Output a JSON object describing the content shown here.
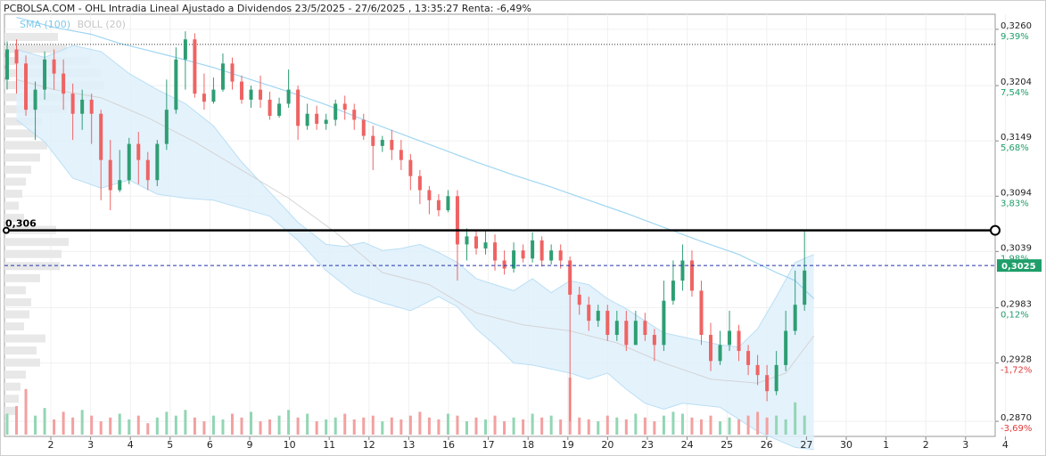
{
  "title": "PCBOLSA.COM - OHL Intradia Lineal Ajustado a Dividendos 23/5/2025 - 27/6/2025 , 13:35:27 Renta: -6,49%",
  "indicators": {
    "sma": "SMA (100)",
    "boll": "BOLL (20)"
  },
  "colors": {
    "up": "#2e9e73",
    "down": "#ef6363",
    "sma": "#9fd6f2",
    "band_fill": "#dff0fb",
    "band_line": "#b9dff4",
    "price_tag": "#1f9e6a",
    "pct_up": "#1f9e6a",
    "pct_down": "#e23a3a"
  },
  "chart_data": {
    "type": "candlestick",
    "x_ticks": [
      "2",
      "3",
      "4",
      "5",
      "6",
      "9",
      "10",
      "11",
      "12",
      "13",
      "16",
      "17",
      "18",
      "19",
      "20",
      "23",
      "24",
      "25",
      "26",
      "27",
      "30",
      "1",
      "2",
      "3",
      "4"
    ],
    "y_ticks": [
      {
        "price": "0,3260",
        "pct": "9,39%"
      },
      {
        "price": "0,3204",
        "pct": "7,54%"
      },
      {
        "price": "0,3149",
        "pct": "5,68%"
      },
      {
        "price": "0,3094",
        "pct": "3,83%"
      },
      {
        "price": "0,3039",
        "pct": "1,98%"
      },
      {
        "price": "0,2983",
        "pct": "0,12%"
      },
      {
        "price": "0,2928",
        "pct": "-1,72%"
      },
      {
        "price": "0,2870",
        "pct": "-3,69%"
      }
    ],
    "ylim": [
      0.2855,
      0.3275
    ],
    "last_price_label": "0,3025",
    "last_price": 0.3025,
    "hline_label": "0,306",
    "hline_value": 0.306,
    "dotted_reference": 0.3245,
    "sma_100": [
      [
        1,
        0.3272
      ],
      [
        5,
        0.3262
      ],
      [
        9,
        0.3255
      ],
      [
        12,
        0.3246
      ],
      [
        15,
        0.3239
      ],
      [
        18,
        0.3232
      ],
      [
        22,
        0.3222
      ],
      [
        26,
        0.321
      ],
      [
        30,
        0.3198
      ],
      [
        34,
        0.3185
      ],
      [
        38,
        0.317
      ],
      [
        42,
        0.3156
      ],
      [
        46,
        0.3142
      ],
      [
        50,
        0.3128
      ],
      [
        54,
        0.3115
      ],
      [
        58,
        0.3103
      ],
      [
        62,
        0.309
      ],
      [
        66,
        0.3077
      ],
      [
        70,
        0.3063
      ],
      [
        74,
        0.3049
      ],
      [
        78,
        0.3036
      ],
      [
        80,
        0.3027
      ],
      [
        82,
        0.3018
      ],
      [
        84,
        0.301
      ],
      [
        86,
        0.2992
      ]
    ],
    "boll_upper": [
      [
        1,
        0.324
      ],
      [
        4,
        0.3232
      ],
      [
        7,
        0.3244
      ],
      [
        10,
        0.3238
      ],
      [
        13,
        0.3216
      ],
      [
        16,
        0.32
      ],
      [
        19,
        0.3186
      ],
      [
        22,
        0.3164
      ],
      [
        25,
        0.3128
      ],
      [
        28,
        0.3098
      ],
      [
        31,
        0.3068
      ],
      [
        34,
        0.3046
      ],
      [
        36,
        0.3044
      ],
      [
        38,
        0.3048
      ],
      [
        40,
        0.304
      ],
      [
        42,
        0.3042
      ],
      [
        44,
        0.3046
      ],
      [
        46,
        0.3038
      ],
      [
        48,
        0.3028
      ],
      [
        50,
        0.3012
      ],
      [
        52,
        0.3006
      ],
      [
        54,
        0.3
      ],
      [
        56,
        0.3012
      ],
      [
        58,
        0.2998
      ],
      [
        60,
        0.301
      ],
      [
        62,
        0.3006
      ],
      [
        64,
        0.2992
      ],
      [
        66,
        0.2982
      ],
      [
        68,
        0.297
      ],
      [
        70,
        0.2958
      ],
      [
        72,
        0.2954
      ],
      [
        74,
        0.295
      ],
      [
        76,
        0.2946
      ],
      [
        78,
        0.2944
      ],
      [
        80,
        0.2962
      ],
      [
        82,
        0.2994
      ],
      [
        84,
        0.3028
      ],
      [
        86,
        0.3036
      ]
    ],
    "boll_middle": [
      [
        1,
        0.321
      ],
      [
        5,
        0.32
      ],
      [
        10,
        0.3192
      ],
      [
        15,
        0.3172
      ],
      [
        20,
        0.3148
      ],
      [
        25,
        0.312
      ],
      [
        30,
        0.3092
      ],
      [
        35,
        0.3058
      ],
      [
        40,
        0.3018
      ],
      [
        45,
        0.3006
      ],
      [
        50,
        0.2978
      ],
      [
        55,
        0.2966
      ],
      [
        60,
        0.296
      ],
      [
        65,
        0.2948
      ],
      [
        70,
        0.2928
      ],
      [
        75,
        0.2912
      ],
      [
        80,
        0.2908
      ],
      [
        83,
        0.2918
      ],
      [
        86,
        0.2955
      ]
    ],
    "boll_lower": [
      [
        1,
        0.317
      ],
      [
        4,
        0.3148
      ],
      [
        7,
        0.3112
      ],
      [
        10,
        0.3102
      ],
      [
        13,
        0.311
      ],
      [
        16,
        0.3096
      ],
      [
        19,
        0.3092
      ],
      [
        22,
        0.309
      ],
      [
        25,
        0.3082
      ],
      [
        28,
        0.3074
      ],
      [
        31,
        0.305
      ],
      [
        34,
        0.302
      ],
      [
        37,
        0.2998
      ],
      [
        40,
        0.2988
      ],
      [
        43,
        0.298
      ],
      [
        46,
        0.2994
      ],
      [
        48,
        0.2984
      ],
      [
        50,
        0.2962
      ],
      [
        52,
        0.2946
      ],
      [
        54,
        0.2928
      ],
      [
        56,
        0.2926
      ],
      [
        58,
        0.2922
      ],
      [
        60,
        0.2918
      ],
      [
        62,
        0.2912
      ],
      [
        64,
        0.2918
      ],
      [
        66,
        0.2902
      ],
      [
        68,
        0.2888
      ],
      [
        70,
        0.2882
      ],
      [
        72,
        0.2888
      ],
      [
        74,
        0.2886
      ],
      [
        76,
        0.2884
      ],
      [
        78,
        0.2872
      ],
      [
        80,
        0.286
      ],
      [
        82,
        0.2852
      ],
      [
        84,
        0.2844
      ],
      [
        86,
        0.2842
      ]
    ],
    "candles": [
      [
        0.321,
        0.324,
        0.3248,
        0.32
      ],
      [
        0.324,
        0.3226,
        0.325,
        0.3196
      ],
      [
        0.3226,
        0.318,
        0.3234,
        0.3174
      ],
      [
        0.318,
        0.32,
        0.3208,
        0.315
      ],
      [
        0.32,
        0.323,
        0.3238,
        0.319
      ],
      [
        0.323,
        0.3216,
        0.324,
        0.32
      ],
      [
        0.3216,
        0.3196,
        0.323,
        0.318
      ],
      [
        0.3196,
        0.3176,
        0.3206,
        0.315
      ],
      [
        0.3176,
        0.319,
        0.32,
        0.316
      ],
      [
        0.319,
        0.3176,
        0.3196,
        0.3146
      ],
      [
        0.3176,
        0.313,
        0.318,
        0.309
      ],
      [
        0.313,
        0.31,
        0.315,
        0.308
      ],
      [
        0.31,
        0.311,
        0.314,
        0.3098
      ],
      [
        0.311,
        0.3146,
        0.3152,
        0.3106
      ],
      [
        0.3146,
        0.313,
        0.3158,
        0.3106
      ],
      [
        0.313,
        0.311,
        0.3138,
        0.31
      ],
      [
        0.311,
        0.3146,
        0.315,
        0.3104
      ],
      [
        0.3146,
        0.318,
        0.321,
        0.314
      ],
      [
        0.318,
        0.323,
        0.3242,
        0.3176
      ],
      [
        0.323,
        0.325,
        0.3258,
        0.32
      ],
      [
        0.325,
        0.3196,
        0.3256,
        0.3192
      ],
      [
        0.3196,
        0.3188,
        0.3216,
        0.318
      ],
      [
        0.3188,
        0.32,
        0.3212,
        0.3186
      ],
      [
        0.32,
        0.3226,
        0.3236,
        0.3198
      ],
      [
        0.3226,
        0.3208,
        0.3232,
        0.32
      ],
      [
        0.3208,
        0.319,
        0.3214,
        0.3186
      ],
      [
        0.319,
        0.32,
        0.3204,
        0.3182
      ],
      [
        0.32,
        0.319,
        0.3214,
        0.3182
      ],
      [
        0.319,
        0.3174,
        0.3198,
        0.317
      ],
      [
        0.3174,
        0.3186,
        0.3192,
        0.3172
      ],
      [
        0.3186,
        0.32,
        0.322,
        0.3182
      ],
      [
        0.32,
        0.3164,
        0.3204,
        0.315
      ],
      [
        0.3164,
        0.3176,
        0.3186,
        0.316
      ],
      [
        0.3176,
        0.3166,
        0.3184,
        0.316
      ],
      [
        0.3166,
        0.317,
        0.3176,
        0.316
      ],
      [
        0.317,
        0.3186,
        0.319,
        0.3164
      ],
      [
        0.3186,
        0.318,
        0.3194,
        0.317
      ],
      [
        0.318,
        0.317,
        0.3186,
        0.316
      ],
      [
        0.317,
        0.3154,
        0.3176,
        0.315
      ],
      [
        0.3154,
        0.3144,
        0.3164,
        0.312
      ],
      [
        0.3144,
        0.315,
        0.3154,
        0.3138
      ],
      [
        0.315,
        0.314,
        0.316,
        0.313
      ],
      [
        0.314,
        0.313,
        0.315,
        0.312
      ],
      [
        0.313,
        0.3114,
        0.3136,
        0.31
      ],
      [
        0.3114,
        0.31,
        0.312,
        0.3086
      ],
      [
        0.31,
        0.309,
        0.3104,
        0.3076
      ],
      [
        0.309,
        0.308,
        0.3096,
        0.3074
      ],
      [
        0.308,
        0.3094,
        0.31,
        0.3078
      ],
      [
        0.3094,
        0.3046,
        0.31,
        0.301
      ],
      [
        0.3046,
        0.3054,
        0.3062,
        0.303
      ],
      [
        0.3054,
        0.3042,
        0.306,
        0.3036
      ],
      [
        0.3042,
        0.3048,
        0.306,
        0.3036
      ],
      [
        0.3048,
        0.303,
        0.3056,
        0.302
      ],
      [
        0.303,
        0.3022,
        0.304,
        0.3016
      ],
      [
        0.3022,
        0.304,
        0.3048,
        0.3018
      ],
      [
        0.304,
        0.3032,
        0.3046,
        0.3028
      ],
      [
        0.3032,
        0.305,
        0.3058,
        0.3028
      ],
      [
        0.305,
        0.303,
        0.3054,
        0.3024
      ],
      [
        0.303,
        0.304,
        0.3046,
        0.3026
      ],
      [
        0.304,
        0.303,
        0.3046,
        0.3022
      ],
      [
        0.303,
        0.2996,
        0.3034,
        0.287
      ],
      [
        0.2996,
        0.2986,
        0.3004,
        0.2976
      ],
      [
        0.2986,
        0.297,
        0.2994,
        0.296
      ],
      [
        0.297,
        0.298,
        0.2986,
        0.2964
      ],
      [
        0.298,
        0.2956,
        0.2986,
        0.295
      ],
      [
        0.2956,
        0.297,
        0.298,
        0.295
      ],
      [
        0.297,
        0.2946,
        0.298,
        0.294
      ],
      [
        0.2946,
        0.297,
        0.298,
        0.2946
      ],
      [
        0.297,
        0.2956,
        0.2978,
        0.295
      ],
      [
        0.2956,
        0.2946,
        0.2962,
        0.293
      ],
      [
        0.2946,
        0.299,
        0.301,
        0.294
      ],
      [
        0.299,
        0.301,
        0.303,
        0.2986
      ],
      [
        0.301,
        0.303,
        0.3046,
        0.3
      ],
      [
        0.303,
        0.3,
        0.304,
        0.2994
      ],
      [
        0.3,
        0.2956,
        0.301,
        0.2946
      ],
      [
        0.2956,
        0.293,
        0.2968,
        0.292
      ],
      [
        0.293,
        0.2946,
        0.296,
        0.2926
      ],
      [
        0.2946,
        0.296,
        0.298,
        0.294
      ],
      [
        0.296,
        0.294,
        0.2966,
        0.293
      ],
      [
        0.294,
        0.2926,
        0.2946,
        0.2916
      ],
      [
        0.2926,
        0.2916,
        0.2936,
        0.2906
      ],
      [
        0.2916,
        0.29,
        0.2926,
        0.289
      ],
      [
        0.29,
        0.2926,
        0.294,
        0.2896
      ],
      [
        0.2926,
        0.296,
        0.298,
        0.292
      ],
      [
        0.296,
        0.2986,
        0.302,
        0.2956
      ],
      [
        0.2986,
        0.302,
        0.306,
        0.298
      ]
    ],
    "volumes": [
      22,
      30,
      48,
      20,
      28,
      16,
      24,
      18,
      26,
      20,
      14,
      18,
      22,
      16,
      20,
      12,
      18,
      24,
      20,
      26,
      18,
      14,
      20,
      16,
      22,
      18,
      24,
      14,
      16,
      20,
      26,
      18,
      22,
      14,
      16,
      18,
      22,
      16,
      18,
      20,
      14,
      18,
      16,
      20,
      24,
      18,
      16,
      22,
      20,
      14,
      18,
      16,
      20,
      14,
      18,
      16,
      22,
      18,
      20,
      16,
      60,
      18,
      16,
      14,
      20,
      18,
      16,
      22,
      18,
      14,
      20,
      24,
      22,
      18,
      16,
      20,
      14,
      18,
      16,
      20,
      24,
      18,
      20,
      16,
      34,
      20
    ],
    "volume_max": 60,
    "volume_profile": [
      [
        0.3252,
        60
      ],
      [
        0.324,
        70
      ],
      [
        0.3228,
        95
      ],
      [
        0.3216,
        108
      ],
      [
        0.3204,
        112
      ],
      [
        0.3192,
        100
      ],
      [
        0.318,
        70
      ],
      [
        0.3168,
        42
      ],
      [
        0.3156,
        38
      ],
      [
        0.3144,
        48
      ],
      [
        0.3132,
        40
      ],
      [
        0.312,
        30
      ],
      [
        0.3108,
        24
      ],
      [
        0.3096,
        20
      ],
      [
        0.3084,
        16
      ],
      [
        0.3072,
        22
      ],
      [
        0.306,
        58
      ],
      [
        0.3048,
        72
      ],
      [
        0.3036,
        64
      ],
      [
        0.3024,
        62
      ],
      [
        0.3012,
        40
      ],
      [
        0.3,
        24
      ],
      [
        0.2988,
        30
      ],
      [
        0.2976,
        28
      ],
      [
        0.2964,
        22
      ],
      [
        0.2952,
        46
      ],
      [
        0.294,
        36
      ],
      [
        0.2928,
        40
      ],
      [
        0.2916,
        24
      ],
      [
        0.2904,
        18
      ],
      [
        0.2892,
        16
      ],
      [
        0.288,
        14
      ]
    ]
  }
}
